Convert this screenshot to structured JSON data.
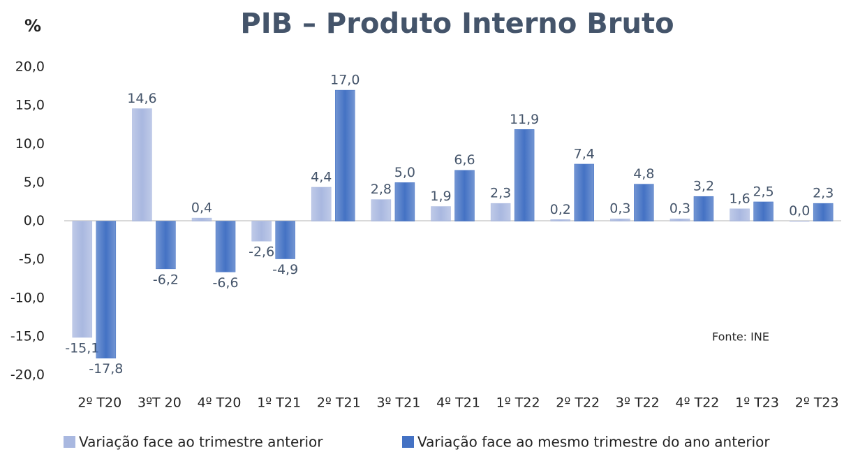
{
  "chart_data": {
    "type": "bar",
    "title": "PIB – Produto Interno Bruto",
    "y_label": "%",
    "annotation": "Fonte: INE",
    "categories": [
      "2º T20",
      "3ºT 20",
      "4º T20",
      "1º T21",
      "2º T21",
      "3º T21",
      "4º T21",
      "1º T22",
      "2º T22",
      "3º T22",
      "4º T22",
      "1º T23",
      "2º T23"
    ],
    "series": [
      {
        "name": "Variação face ao trimestre anterior",
        "color": "#a9b8e0",
        "values": [
          -15.1,
          14.6,
          0.4,
          -2.6,
          4.4,
          2.8,
          1.9,
          2.3,
          0.2,
          0.3,
          0.3,
          1.6,
          0.0
        ],
        "value_labels": [
          "-15,1",
          "14,6",
          "0,4",
          "-2,6",
          "4,4",
          "2,8",
          "1,9",
          "2,3",
          "0,2",
          "0,3",
          "0,3",
          "1,6",
          "0,0"
        ]
      },
      {
        "name": "Variação face ao mesmo trimestre do ano anterior",
        "color": "#4472c4",
        "values": [
          -17.8,
          -6.2,
          -6.6,
          -4.9,
          17.0,
          5.0,
          6.6,
          11.9,
          7.4,
          4.8,
          3.2,
          2.5,
          2.3
        ],
        "value_labels": [
          "-17,8",
          "-6,2",
          "-6,6",
          "-4,9",
          "17,0",
          "5,0",
          "6,6",
          "11,9",
          "7,4",
          "4,8",
          "3,2",
          "2,5",
          "2,3"
        ]
      }
    ],
    "ylim": [
      -20,
      20
    ],
    "yticks": [
      {
        "value": -20,
        "label": "-20,0"
      },
      {
        "value": -15,
        "label": "-15,0"
      },
      {
        "value": -10,
        "label": "-10,0"
      },
      {
        "value": -5,
        "label": "-5,0"
      },
      {
        "value": 0,
        "label": "0,0"
      },
      {
        "value": 5,
        "label": "5,0"
      },
      {
        "value": 10,
        "label": "10,0"
      },
      {
        "value": 15,
        "label": "15,0"
      },
      {
        "value": 20,
        "label": "20,0"
      }
    ],
    "grid": false,
    "legend": "bottom"
  }
}
